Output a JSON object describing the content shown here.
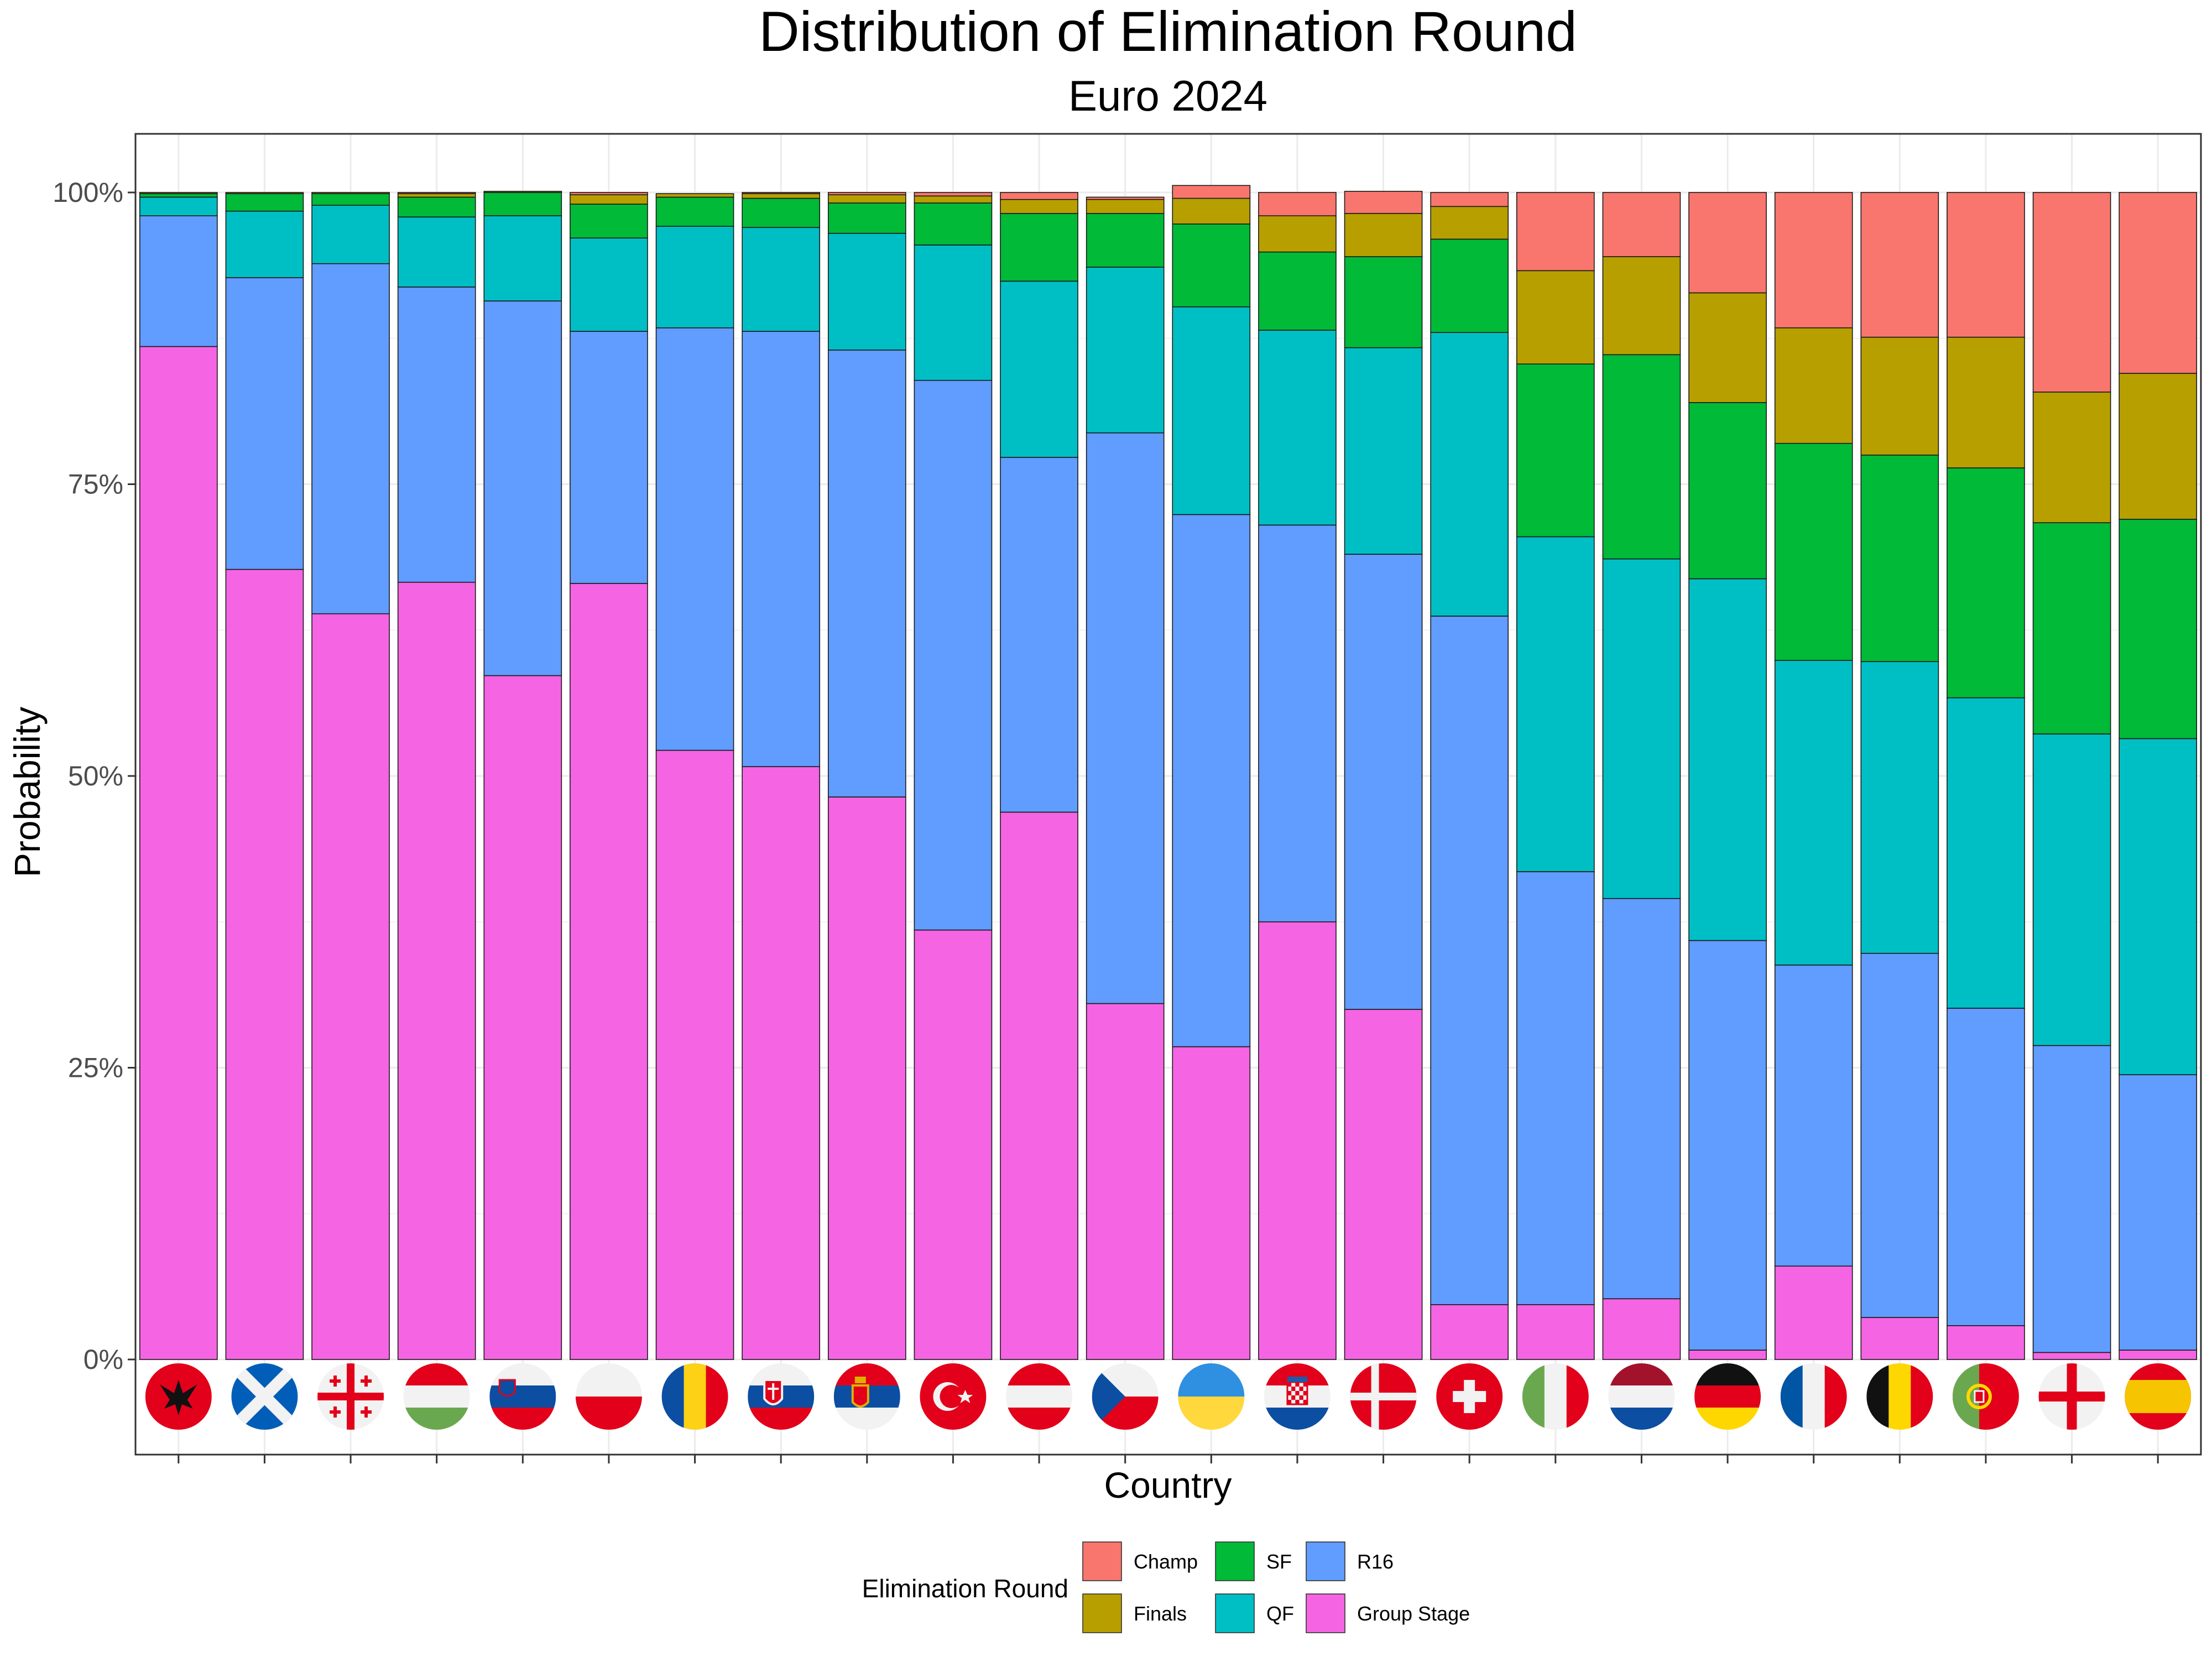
{
  "chart_data": {
    "type": "bar",
    "stacked": true,
    "title": "Distribution of Elimination Round",
    "subtitle": "Euro 2024",
    "xlabel": "Country",
    "ylabel": "Probability",
    "ylim": [
      0,
      1
    ],
    "y_ticks": [
      "0%",
      "25%",
      "50%",
      "75%",
      "100%"
    ],
    "grid": true,
    "legend_placement": "bottom",
    "legend_title": "Elimination Round",
    "categories": [
      "Albania",
      "Scotland",
      "Georgia",
      "Hungary",
      "Slovenia",
      "Poland",
      "Romania",
      "Slovakia",
      "Serbia",
      "Turkey",
      "Austria",
      "Czechia",
      "Ukraine",
      "Croatia",
      "Denmark",
      "Switzerland",
      "Italy",
      "Netherlands",
      "Germany",
      "France",
      "Belgium",
      "Portugal",
      "England",
      "Spain"
    ],
    "category_icons": [
      "albania-flag-icon",
      "scotland-flag-icon",
      "georgia-flag-icon",
      "hungary-flag-icon",
      "slovenia-flag-icon",
      "poland-flag-icon",
      "romania-flag-icon",
      "slovakia-flag-icon",
      "serbia-flag-icon",
      "turkey-flag-icon",
      "austria-flag-icon",
      "czechia-flag-icon",
      "ukraine-flag-icon",
      "croatia-flag-icon",
      "denmark-flag-icon",
      "switzerland-flag-icon",
      "italy-flag-icon",
      "netherlands-flag-icon",
      "germany-flag-icon",
      "france-flag-icon",
      "belgium-flag-icon",
      "portugal-flag-icon",
      "england-flag-icon",
      "spain-flag-icon"
    ],
    "series": [
      {
        "name": "Group Stage",
        "color": "#F564E3",
        "values": [
          0.868,
          0.677,
          0.639,
          0.666,
          0.586,
          0.665,
          0.522,
          0.508,
          0.482,
          0.368,
          0.469,
          0.305,
          0.268,
          0.375,
          0.3,
          0.047,
          0.047,
          0.052,
          0.008,
          0.08,
          0.036,
          0.029,
          0.006,
          0.008
        ]
      },
      {
        "name": "R16",
        "color": "#619CFF",
        "values": [
          0.112,
          0.25,
          0.3,
          0.253,
          0.321,
          0.216,
          0.362,
          0.373,
          0.383,
          0.471,
          0.304,
          0.489,
          0.456,
          0.34,
          0.39,
          0.59,
          0.371,
          0.343,
          0.351,
          0.258,
          0.312,
          0.272,
          0.263,
          0.236
        ]
      },
      {
        "name": "QF",
        "color": "#00BFC4",
        "values": [
          0.016,
          0.057,
          0.05,
          0.06,
          0.073,
          0.08,
          0.087,
          0.089,
          0.1,
          0.116,
          0.151,
          0.142,
          0.178,
          0.167,
          0.177,
          0.243,
          0.287,
          0.291,
          0.31,
          0.261,
          0.25,
          0.266,
          0.267,
          0.288
        ]
      },
      {
        "name": "SF",
        "color": "#00BA38",
        "values": [
          0.003,
          0.015,
          0.01,
          0.017,
          0.02,
          0.029,
          0.025,
          0.025,
          0.026,
          0.036,
          0.058,
          0.046,
          0.071,
          0.067,
          0.078,
          0.08,
          0.148,
          0.175,
          0.151,
          0.186,
          0.177,
          0.197,
          0.181,
          0.188
        ]
      },
      {
        "name": "Finals",
        "color": "#B79F00",
        "values": [
          0.001,
          0.001,
          0.001,
          0.003,
          0.001,
          0.008,
          0.003,
          0.004,
          0.007,
          0.006,
          0.012,
          0.012,
          0.022,
          0.031,
          0.037,
          0.028,
          0.08,
          0.084,
          0.094,
          0.099,
          0.101,
          0.112,
          0.112,
          0.125
        ]
      },
      {
        "name": "Champ",
        "color": "#F8766D",
        "values": [
          0.0,
          0.0,
          0.0,
          0.001,
          0.0,
          0.002,
          0.0,
          0.001,
          0.002,
          0.003,
          0.006,
          0.002,
          0.011,
          0.02,
          0.019,
          0.012,
          0.067,
          0.055,
          0.086,
          0.116,
          0.124,
          0.124,
          0.171,
          0.155
        ]
      }
    ]
  },
  "legend_order": [
    "Champ",
    "Finals",
    "SF",
    "QF",
    "R16",
    "Group Stage"
  ]
}
